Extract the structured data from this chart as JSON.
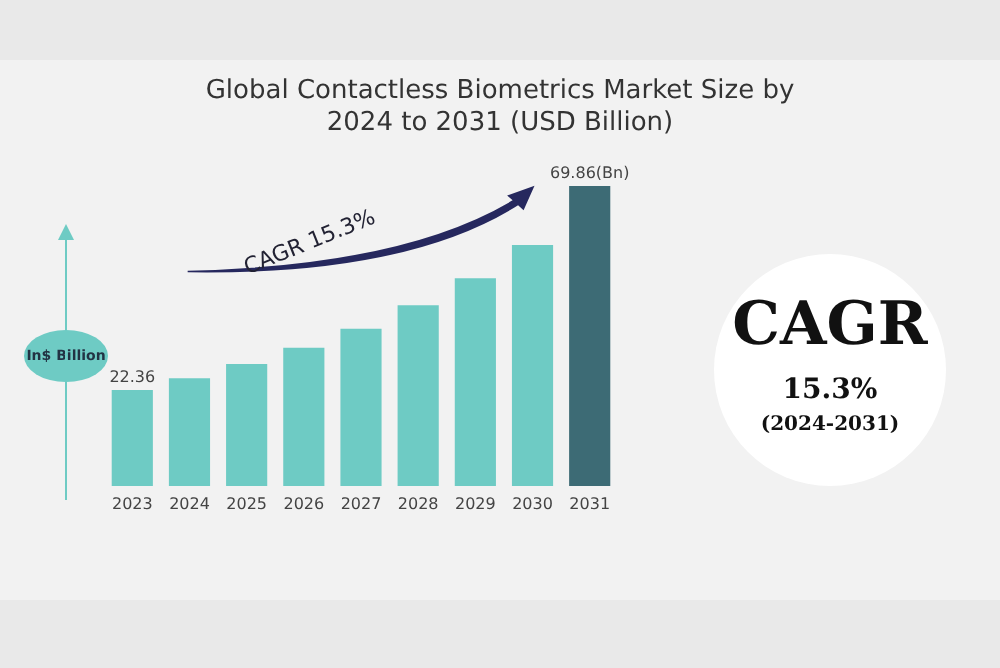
{
  "chart_data": {
    "type": "bar",
    "title": "Global Contactless Biometrics Market Size by 2024 to 2031 (USD Billion)",
    "ylabel": "In$ Billion",
    "categories": [
      "2023",
      "2024",
      "2025",
      "2026",
      "2027",
      "2028",
      "2029",
      "2030",
      "2031"
    ],
    "values": [
      22.36,
      25.1,
      28.4,
      32.2,
      36.6,
      42.1,
      48.4,
      56.1,
      69.86
    ],
    "value_labels": [
      "22.36",
      null,
      null,
      null,
      null,
      null,
      null,
      null,
      "69.86(Bn)"
    ],
    "colors": [
      "#6ecbc4",
      "#6ecbc4",
      "#6ecbc4",
      "#6ecbc4",
      "#6ecbc4",
      "#6ecbc4",
      "#6ecbc4",
      "#6ecbc4",
      "#3d6b75"
    ],
    "annotations": [
      "CAGR 15.3%",
      "CAGR",
      "15.3%",
      "(2024-2031)"
    ]
  }
}
